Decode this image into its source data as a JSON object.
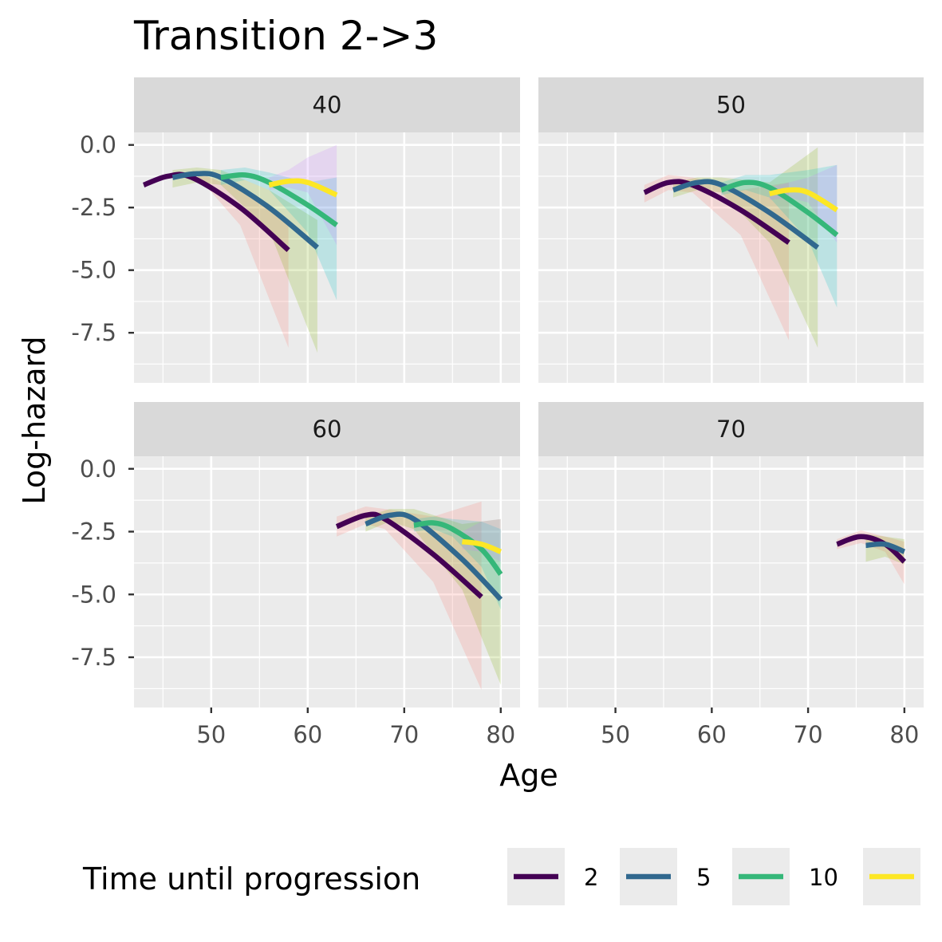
{
  "chart_data": {
    "type": "line",
    "title": "Transition 2->3",
    "xlabel": "Age",
    "ylabel": "Log-hazard",
    "xlim": [
      42,
      82
    ],
    "ylim": [
      -9.5,
      0.5
    ],
    "x_ticks": [
      50,
      60,
      70,
      80
    ],
    "y_ticks": [
      0.0,
      -2.5,
      -5.0,
      -7.5
    ],
    "x_tick_labels": [
      "50",
      "60",
      "70",
      "80"
    ],
    "y_tick_labels": [
      "0.0",
      "-2.5",
      "-5.0",
      "-7.5"
    ],
    "grid": true,
    "legend": {
      "title": "Time until progression",
      "placement": "bottom",
      "entries": [
        {
          "label": "2",
          "color": "#440154"
        },
        {
          "label": "5",
          "color": "#31688e"
        },
        {
          "label": "10",
          "color": "#35b779"
        },
        {
          "label": "",
          "color": "#fde725"
        }
      ]
    },
    "panels": [
      {
        "strip": "40",
        "series": [
          {
            "color": "#440154",
            "fill": "#f8766d",
            "x": [
              43,
              45.5,
              48,
              53,
              58
            ],
            "y": [
              -1.6,
              -1.25,
              -1.3,
              -2.5,
              -4.2
            ],
            "lower": [
              -1.1,
              -0.9,
              -1.0,
              -3.2,
              -8.1
            ],
            "upper": [
              -1.1,
              -0.9,
              -1.0,
              -1.8,
              -3.0
            ]
          },
          {
            "color": "#31688e",
            "fill": "#7cae00",
            "x": [
              46,
              48.5,
              51,
              56,
              61
            ],
            "y": [
              -1.3,
              -1.15,
              -1.3,
              -2.5,
              -4.1
            ],
            "lower": [
              -1.7,
              -1.5,
              -1.6,
              -3.4,
              -8.3
            ],
            "upper": [
              -1.0,
              -0.9,
              -1.0,
              -1.8,
              -3.0
            ]
          },
          {
            "color": "#35b779",
            "fill": "#00bfc4",
            "x": [
              51,
              53.5,
              56,
              60,
              63
            ],
            "y": [
              -1.3,
              -1.2,
              -1.5,
              -2.4,
              -3.2
            ],
            "lower": [
              -1.6,
              -1.4,
              -1.8,
              -3.5,
              -6.2
            ],
            "upper": [
              -1.0,
              -0.9,
              -1.1,
              -1.5,
              -1.3
            ]
          },
          {
            "color": "#fde725",
            "fill": "#c77cff",
            "x": [
              56,
              58,
              60,
              63
            ],
            "y": [
              -1.6,
              -1.45,
              -1.5,
              -2.0
            ],
            "lower": [
              -1.8,
              -1.7,
              -1.9,
              -4.0
            ],
            "upper": [
              -1.3,
              -1.0,
              -0.5,
              0.0
            ]
          }
        ]
      },
      {
        "strip": "50",
        "series": [
          {
            "color": "#440154",
            "fill": "#f8766d",
            "x": [
              53,
              55.5,
              58,
              63,
              68
            ],
            "y": [
              -1.9,
              -1.5,
              -1.6,
              -2.6,
              -3.9
            ],
            "lower": [
              -2.3,
              -1.8,
              -1.9,
              -3.6,
              -7.8
            ],
            "upper": [
              -1.6,
              -1.2,
              -1.3,
              -1.8,
              -1.5
            ]
          },
          {
            "color": "#31688e",
            "fill": "#7cae00",
            "x": [
              56,
              58.5,
              61,
              66,
              71
            ],
            "y": [
              -1.8,
              -1.5,
              -1.6,
              -2.7,
              -4.1
            ],
            "lower": [
              -2.1,
              -1.8,
              -1.9,
              -3.9,
              -8.1
            ],
            "upper": [
              -1.5,
              -1.3,
              -1.3,
              -1.5,
              -0.1
            ]
          },
          {
            "color": "#35b779",
            "fill": "#00bfc4",
            "x": [
              61,
              63.5,
              66,
              70,
              73
            ],
            "y": [
              -1.8,
              -1.5,
              -1.7,
              -2.7,
              -3.6
            ],
            "lower": [
              -2.0,
              -1.8,
              -2.1,
              -3.8,
              -6.5
            ],
            "upper": [
              -1.5,
              -1.2,
              -1.2,
              -1.0,
              -0.8
            ]
          },
          {
            "color": "#fde725",
            "fill": "#c77cff",
            "x": [
              66,
              68,
              70,
              73
            ],
            "y": [
              -1.95,
              -1.8,
              -1.9,
              -2.6
            ],
            "lower": [
              -2.2,
              -2.1,
              -2.3,
              -3.9
            ],
            "upper": [
              -1.7,
              -1.5,
              -1.3,
              -0.8
            ]
          }
        ]
      },
      {
        "strip": "60",
        "series": [
          {
            "color": "#440154",
            "fill": "#f8766d",
            "x": [
              63,
              66,
              68,
              73,
              78
            ],
            "y": [
              -2.3,
              -1.85,
              -2.0,
              -3.4,
              -5.1
            ],
            "lower": [
              -2.7,
              -2.2,
              -2.4,
              -4.5,
              -8.8
            ],
            "upper": [
              -1.9,
              -1.5,
              -1.6,
              -1.9,
              -1.3
            ]
          },
          {
            "color": "#31688e",
            "fill": "#7cae00",
            "x": [
              66,
              68.5,
              71,
              76,
              80
            ],
            "y": [
              -2.2,
              -1.85,
              -2.0,
              -3.6,
              -5.2
            ],
            "lower": [
              -2.5,
              -2.1,
              -2.4,
              -4.8,
              -8.6
            ],
            "upper": [
              -1.9,
              -1.6,
              -1.6,
              -2.2,
              -2.0
            ]
          },
          {
            "color": "#35b779",
            "fill": "#00bfc4",
            "x": [
              71,
              73,
              75,
              78,
              80
            ],
            "y": [
              -2.25,
              -2.15,
              -2.4,
              -3.2,
              -4.2
            ],
            "lower": [
              -2.5,
              -2.4,
              -2.7,
              -3.9,
              -5.6
            ],
            "upper": [
              -2.0,
              -1.9,
              -2.0,
              -2.1,
              -2.4
            ]
          },
          {
            "color": "#fde725",
            "fill": "#c77cff",
            "x": [
              76,
              78,
              80
            ],
            "y": [
              -2.9,
              -3.0,
              -3.3
            ],
            "lower": [
              -3.2,
              -3.3,
              -3.7
            ],
            "upper": [
              -2.5,
              -2.1,
              -2.0
            ]
          }
        ]
      },
      {
        "strip": "70",
        "series": [
          {
            "color": "#440154",
            "fill": "#f8766d",
            "x": [
              73,
              75.5,
              78,
              80
            ],
            "y": [
              -3.0,
              -2.7,
              -3.0,
              -3.7
            ],
            "lower": [
              -3.2,
              -2.95,
              -3.3,
              -4.6
            ],
            "upper": [
              -2.8,
              -2.45,
              -2.7,
              -2.9
            ]
          },
          {
            "color": "#31688e",
            "fill": "#7cae00",
            "x": [
              76,
              78,
              80
            ],
            "y": [
              -3.05,
              -3.0,
              -3.3
            ],
            "lower": [
              -3.7,
              -3.5,
              -3.8
            ],
            "upper": [
              -2.6,
              -2.7,
              -2.8
            ]
          }
        ]
      }
    ]
  }
}
